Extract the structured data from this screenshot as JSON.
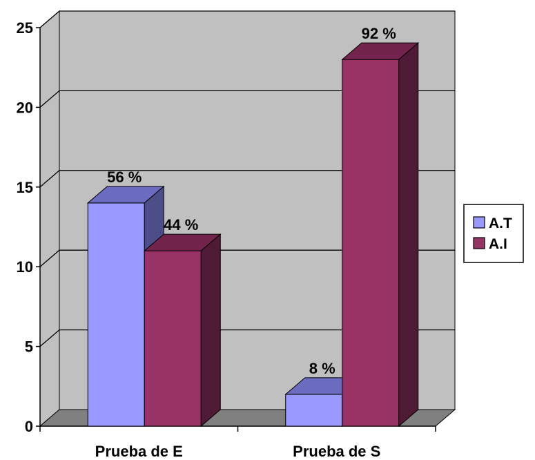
{
  "chart_data": {
    "type": "bar",
    "style": "3d-clustered-column",
    "categories": [
      "Prueba de E",
      "Prueba de S"
    ],
    "series": [
      {
        "name": "A.T",
        "values": [
          14,
          2
        ],
        "labels": [
          "56 %",
          "8 %"
        ]
      },
      {
        "name": "A.I",
        "values": [
          11,
          23
        ],
        "labels": [
          "44 %",
          "92 %"
        ]
      }
    ],
    "ylim": [
      0,
      25
    ],
    "yticks": [
      "0",
      "5",
      "10",
      "15",
      "20",
      "25"
    ],
    "grid": true,
    "legend_position": "right"
  },
  "colors": {
    "A.T": {
      "front": "#9999ff",
      "top": "#6b6bc0",
      "side": "#4d4d8a"
    },
    "A.I": {
      "front": "#993366",
      "top": "#72244c",
      "side": "#4f1a35"
    },
    "wall": "#c0c0c0",
    "floor": "#808080",
    "grid": "#000000"
  }
}
